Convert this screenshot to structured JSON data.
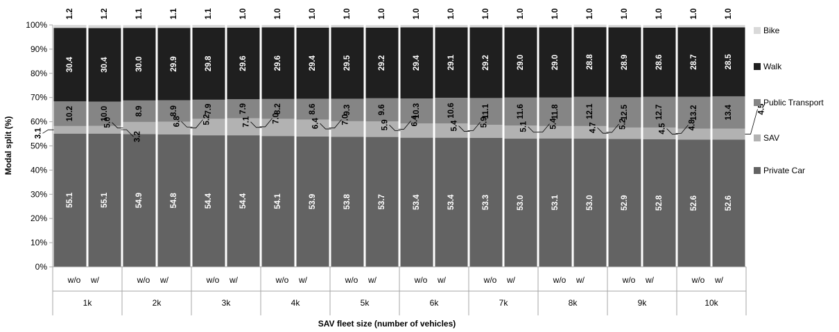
{
  "chart_data": {
    "type": "bar",
    "stacked": true,
    "title": "",
    "xlabel": "SAV fleet size (number of vehicles)",
    "ylabel": "Modal split (%)",
    "ylim": [
      0,
      100
    ],
    "y_ticks": [
      "0%",
      "10%",
      "20%",
      "30%",
      "40%",
      "50%",
      "60%",
      "70%",
      "80%",
      "90%",
      "100%"
    ],
    "grid": false,
    "legend_position": "right",
    "groups": [
      "1k",
      "2k",
      "3k",
      "4k",
      "5k",
      "6k",
      "7k",
      "8k",
      "9k",
      "10k"
    ],
    "subcategories": [
      "w/o",
      "w/"
    ],
    "series": [
      {
        "name": "Private Car",
        "color": "#636363",
        "label_color": "#ffffff",
        "values": [
          55.1,
          55.1,
          54.9,
          54.8,
          54.4,
          54.4,
          54.1,
          53.9,
          53.8,
          53.7,
          53.4,
          53.4,
          53.3,
          53.0,
          53.1,
          53.0,
          52.9,
          52.8,
          52.6,
          52.6
        ]
      },
      {
        "name": "SAV",
        "color": "#b2b2b2",
        "label_color": "#000000",
        "values": [
          3.1,
          3.2,
          5.0,
          5.2,
          6.8,
          7.0,
          7.1,
          7.0,
          6.4,
          6.4,
          5.9,
          5.9,
          5.4,
          5.4,
          5.1,
          5.2,
          4.7,
          4.8,
          4.5,
          4.5
        ]
      },
      {
        "name": "Public Transport",
        "color": "#858585",
        "label_color": "#000000",
        "values": [
          10.2,
          10.0,
          8.9,
          8.9,
          7.9,
          7.9,
          8.2,
          8.6,
          9.3,
          9.6,
          10.3,
          10.6,
          11.1,
          11.6,
          11.8,
          12.1,
          12.5,
          12.7,
          13.2,
          13.4
        ]
      },
      {
        "name": "Walk",
        "color": "#1f1f1f",
        "label_color": "#ffffff",
        "values": [
          30.4,
          30.4,
          30.0,
          29.9,
          29.8,
          29.6,
          29.6,
          29.4,
          29.5,
          29.2,
          29.4,
          29.1,
          29.2,
          29.0,
          29.0,
          28.8,
          28.9,
          28.6,
          28.7,
          28.5
        ]
      },
      {
        "name": "Bike",
        "color": "#d9d9d9",
        "label_color": "#000000",
        "values": [
          1.2,
          1.2,
          1.1,
          1.1,
          1.1,
          1.0,
          1.0,
          1.0,
          1.0,
          1.0,
          1.0,
          1.0,
          1.0,
          1.0,
          1.0,
          1.0,
          1.0,
          1.0,
          1.0,
          1.0
        ]
      }
    ]
  }
}
